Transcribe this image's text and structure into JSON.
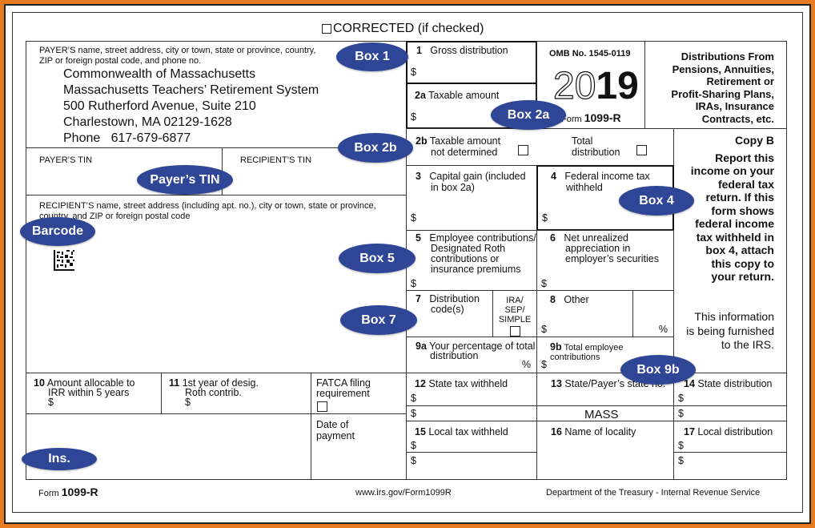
{
  "header": {
    "corrected": "CORRECTED (if checked)"
  },
  "payer": {
    "label_line1": "PAYER’S name, street address, city or town, state or province, country,",
    "label_line2": "ZIP or foreign postal code, and phone no.",
    "lines": [
      "Commonwealth of Massachusetts",
      "Massachusetts Teachers’ Retirement System",
      "500 Rutherford Avenue, Suite 210",
      "Charlestown, MA 02129-1628",
      "Phone   617-679-6877"
    ]
  },
  "tin": {
    "payer": "PAYER’S TIN",
    "recipient": "RECIPIENT’S TIN"
  },
  "recipient": {
    "label_line1": "RECIPIENT’S name, street address (including apt. no.), city or town, state or province,",
    "label_line2": "country, and ZIP or foreign postal code"
  },
  "boxes": {
    "b1_num": "1",
    "b1": "Gross distribution",
    "b2a_num": "2a",
    "b2a": "Taxable amount",
    "b2b_num": "2b",
    "b2b_l1": "Taxable amount",
    "b2b_l2": "not determined",
    "total_l1": "Total",
    "total_l2": "distribution",
    "b3_num": "3",
    "b3_l1": "Capital gain (included",
    "b3_l2": "in box 2a)",
    "b4_num": "4",
    "b4_l1": "Federal income tax",
    "b4_l2": "withheld",
    "b5_num": "5",
    "b5_l1": "Employee contributions/",
    "b5_l2": "Designated Roth",
    "b5_l3": "contributions or",
    "b5_l4": "insurance premiums",
    "b6_num": "6",
    "b6_l1": "Net unrealized",
    "b6_l2": "appreciation in",
    "b6_l3": "employer’s securities",
    "b7_num": "7",
    "b7_l1": "Distribution",
    "b7_l2": "code(s)",
    "ira_l1": "IRA/",
    "ira_l2": "SEP/",
    "ira_l3": "SIMPLE",
    "b8_num": "8",
    "b8": "Other",
    "b9a_num": "9a",
    "b9a_l1": "Your percentage of total",
    "b9a_l2": "distribution",
    "b9b_num": "9b",
    "b9b": "Total employee contributions",
    "b10_num": "10",
    "b10_l1": "Amount allocable to",
    "b10_l2": "IRR within 5 years",
    "b11_num": "11",
    "b11_l1": "1st year of desig.",
    "b11_l2": "Roth contrib.",
    "fatca_l1": "FATCA filing",
    "fatca_l2": "requirement",
    "date_l1": "Date of",
    "date_l2": "payment",
    "b12_num": "12",
    "b12": "State tax withheld",
    "b13_num": "13",
    "b13": "State/Payer’s state no.",
    "b13_value": "MASS",
    "b14_num": "14",
    "b14": "State distribution",
    "b15_num": "15",
    "b15": "Local tax withheld",
    "b16_num": "16",
    "b16": "Name of locality",
    "b17_num": "17",
    "b17": "Local distribution",
    "dollar": "$",
    "percent": "%"
  },
  "omb": {
    "number": "OMB No. 1545-0119",
    "year_outline": "20",
    "year_solid": "19",
    "form_prefix": "Form",
    "form_name": "1099-R"
  },
  "title": {
    "lines": [
      "Distributions From",
      "Pensions, Annuities,",
      "Retirement or",
      "Profit-Sharing Plans,",
      "IRAs, Insurance",
      "Contracts, etc."
    ]
  },
  "copy": {
    "title": "Copy B",
    "instructions": [
      "Report this",
      "income on your",
      "federal tax",
      "return. If this",
      "form shows",
      "federal income",
      "tax withheld in",
      "box 4, attach",
      "this copy to",
      "your return."
    ],
    "info": [
      "This information",
      "is being furnished",
      "to the IRS."
    ]
  },
  "footer": {
    "form_prefix": "Form",
    "form_name": "1099-R",
    "url": "www.irs.gov/Form1099R",
    "dept": "Department of the Treasury - Internal Revenue Service"
  },
  "annotations": {
    "box1": "Box 1",
    "box2a": "Box 2a",
    "box2b": "Box 2b",
    "payer_tin": "Payer’s TIN",
    "barcode": "Barcode",
    "box4": "Box 4",
    "box5": "Box 5",
    "box7": "Box 7",
    "box9b": "Box 9b",
    "ins": "Ins."
  },
  "colors": {
    "frame": "#e87a22",
    "badge": "#2f4596"
  }
}
